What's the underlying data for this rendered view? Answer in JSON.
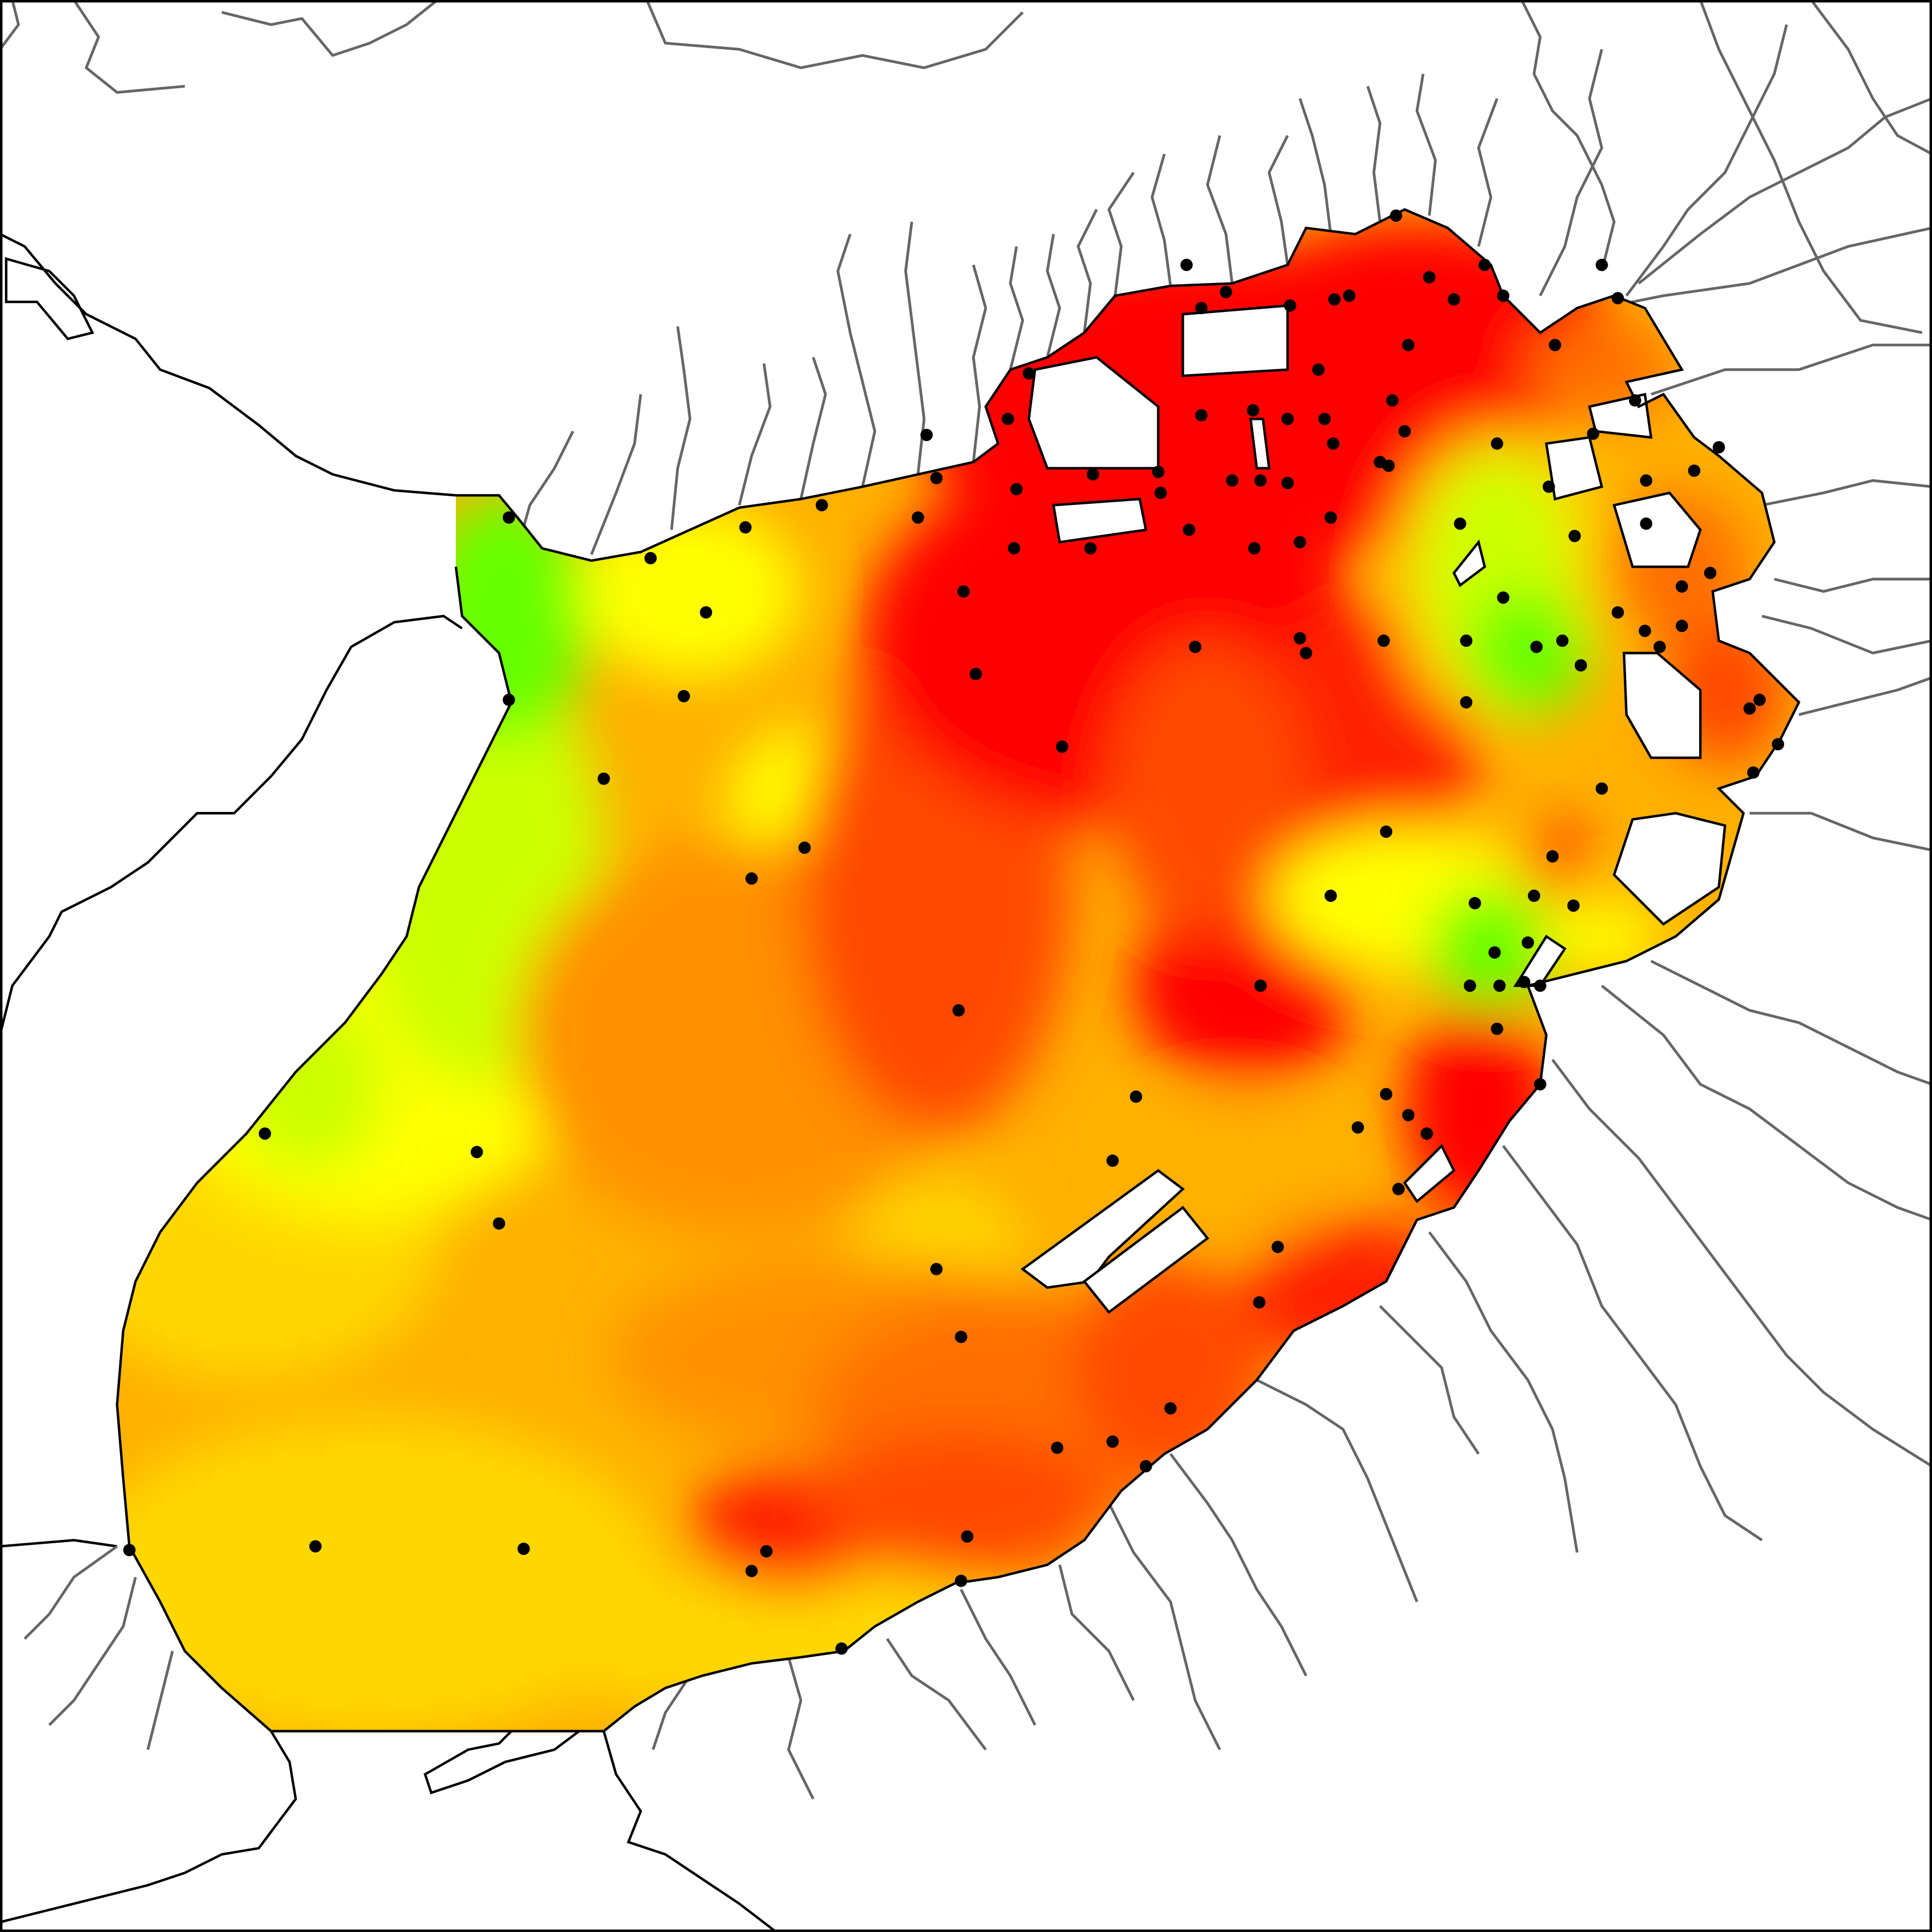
{
  "map": {
    "kind": "interpolated contour map of a bay with sampling stations",
    "colors": {
      "background": "#ffffff",
      "frame": "#000000",
      "coastline": "#000000",
      "rivers": "#666666",
      "station_marker": "#000000",
      "land_cutout": "#ffffff"
    },
    "color_scale": [
      "#66ff00",
      "#ccff00",
      "#ffff00",
      "#ffd700",
      "#ffb000",
      "#ff9000",
      "#ff7000",
      "#ff4a00",
      "#ff2200",
      "#ff0000"
    ],
    "legend": null,
    "labels": []
  }
}
